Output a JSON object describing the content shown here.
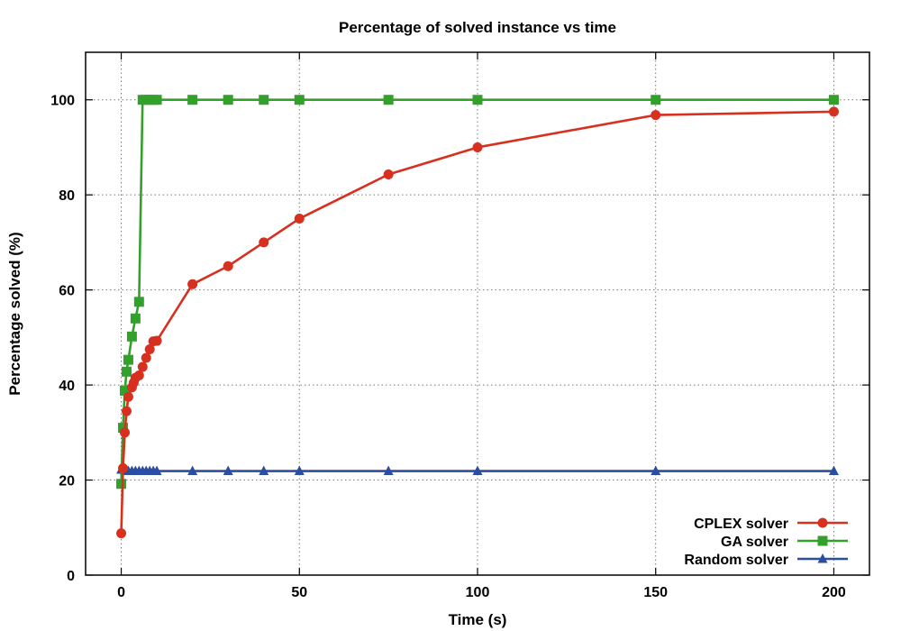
{
  "chart_data": {
    "type": "line",
    "title": "Percentage of solved instance vs time",
    "xlabel": "Time (s)",
    "ylabel": "Percentage solved (%)",
    "xlim": [
      -10,
      210
    ],
    "ylim": [
      0,
      110
    ],
    "x_ticks": [
      0,
      50,
      100,
      150,
      200
    ],
    "y_ticks": [
      0,
      20,
      40,
      60,
      80,
      100
    ],
    "grid": true,
    "legend_position": "bottom-right",
    "series": [
      {
        "name": "CPLEX solver",
        "color": "#d7301f",
        "marker": "circle",
        "x": [
          0,
          0.5,
          1,
          1.5,
          2,
          3,
          3.5,
          4,
          5,
          6,
          7,
          8,
          9,
          10,
          20,
          30,
          40,
          50,
          75,
          100,
          150,
          200
        ],
        "y": [
          8.8,
          22.5,
          30,
          34.5,
          37.5,
          39.5,
          40.5,
          41.5,
          42,
          43.8,
          45.7,
          47.5,
          49.2,
          49.3,
          61.2,
          65,
          70,
          75,
          84.3,
          90,
          96.8,
          97.5
        ]
      },
      {
        "name": "GA solver",
        "color": "#33a02c",
        "marker": "square",
        "x": [
          0,
          0.5,
          1,
          1.5,
          2,
          3,
          4,
          5,
          6,
          7,
          8,
          9,
          10,
          20,
          30,
          40,
          50,
          75,
          100,
          150,
          200
        ],
        "y": [
          19.2,
          31,
          38.8,
          42.8,
          45.3,
          50.2,
          54,
          57.5,
          100,
          100,
          100,
          100,
          100,
          100,
          100,
          100,
          100,
          100,
          100,
          100,
          100
        ]
      },
      {
        "name": "Random solver",
        "color": "#2b4ea2",
        "marker": "triangle",
        "x": [
          0,
          1,
          2,
          3,
          4,
          5,
          6,
          7,
          8,
          9,
          10,
          20,
          30,
          40,
          50,
          75,
          100,
          150,
          200
        ],
        "y": [
          22.2,
          22,
          21.9,
          21.9,
          21.9,
          21.9,
          21.9,
          21.9,
          21.9,
          21.9,
          21.9,
          21.9,
          21.9,
          21.9,
          21.9,
          21.9,
          21.9,
          21.9,
          21.9
        ]
      }
    ]
  }
}
